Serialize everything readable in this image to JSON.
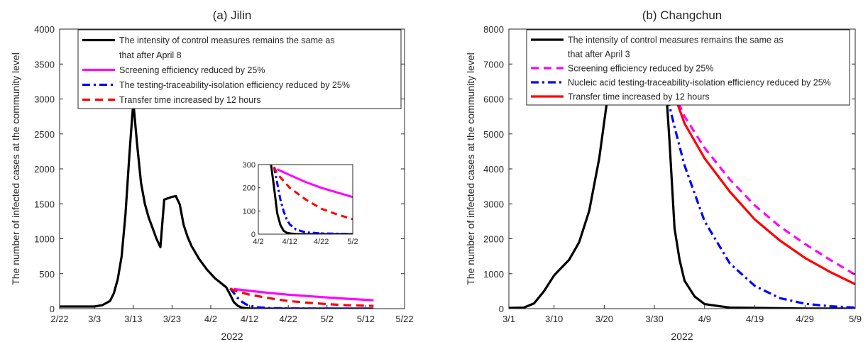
{
  "chart_data": [
    {
      "type": "line",
      "title": "(a) Jilin",
      "xlabel": "2022",
      "ylabel": "The number of infected cases at the community level",
      "xlim": [
        "2/22",
        "5/22"
      ],
      "ylim": [
        0,
        4000
      ],
      "xticks": [
        "2/22",
        "3/3",
        "3/13",
        "3/23",
        "4/2",
        "4/12",
        "4/22",
        "5/2",
        "5/12",
        "5/22"
      ],
      "yticks": [
        "0",
        "500",
        "1000",
        "1500",
        "2000",
        "2500",
        "3000",
        "3500",
        "4000"
      ],
      "legend_position": "top",
      "series": [
        {
          "name": "The intensity of control measures remains the same as that after April 8",
          "color": "#000000",
          "style": "solid",
          "x": [
            "2/22",
            "3/3",
            "3/5",
            "3/7",
            "3/8",
            "3/9",
            "3/10",
            "3/11",
            "3/12",
            "3/13",
            "3/14",
            "3/15",
            "3/16",
            "3/17",
            "3/18",
            "3/19",
            "3/20",
            "3/21",
            "3/22",
            "3/23",
            "3/24",
            "3/25",
            "3/26",
            "3/27",
            "3/28",
            "3/30",
            "4/1",
            "4/3",
            "4/5",
            "4/6",
            "4/7",
            "4/8",
            "4/9",
            "4/10",
            "4/11",
            "4/12",
            "4/14",
            "4/17",
            "4/22",
            "5/2",
            "5/14"
          ],
          "y": [
            30,
            30,
            50,
            110,
            220,
            420,
            750,
            1350,
            2200,
            2960,
            2350,
            1800,
            1500,
            1300,
            1150,
            1000,
            880,
            1560,
            1580,
            1600,
            1610,
            1490,
            1200,
            1030,
            900,
            710,
            560,
            440,
            350,
            305,
            200,
            90,
            40,
            15,
            6,
            3,
            1,
            0,
            0,
            0,
            0
          ]
        },
        {
          "name": "Screening efficiency reduced by 25%",
          "color": "#ff00ff",
          "style": "solid",
          "x": [
            "4/8",
            "4/12",
            "4/17",
            "4/22",
            "4/27",
            "5/2",
            "5/7",
            "5/14"
          ],
          "y": [
            280,
            255,
            225,
            200,
            180,
            160,
            142,
            120
          ]
        },
        {
          "name": "The testing-traceability-isolation efficiency reduced by 25%",
          "color": "#0000ff",
          "style": "dashdot",
          "x": [
            "4/7",
            "4/8",
            "4/9",
            "4/10",
            "4/11",
            "4/12",
            "4/14",
            "4/17",
            "4/22",
            "5/2",
            "5/14"
          ],
          "y": [
            290,
            220,
            150,
            100,
            65,
            42,
            20,
            8,
            3,
            1,
            0
          ]
        },
        {
          "name": "Transfer time increased by 12 hours",
          "color": "#ff0000",
          "style": "dashed",
          "x": [
            "4/7",
            "4/8",
            "4/10",
            "4/12",
            "4/17",
            "4/22",
            "4/27",
            "5/2",
            "5/7",
            "5/14"
          ],
          "y": [
            290,
            260,
            230,
            200,
            150,
            110,
            85,
            65,
            50,
            40
          ]
        }
      ],
      "inset": {
        "xlim": [
          "4/2",
          "5/2"
        ],
        "ylim": [
          0,
          300
        ],
        "xticks": [
          "4/2",
          "4/12",
          "4/22",
          "5/2"
        ],
        "yticks": [
          "0",
          "100",
          "200",
          "300"
        ]
      }
    },
    {
      "type": "line",
      "title": "(b) Changchun",
      "xlabel": "2022",
      "ylabel": "The number of infected cases at the community level",
      "xlim": [
        "3/1",
        "5/9"
      ],
      "ylim": [
        0,
        8000
      ],
      "xticks": [
        "3/1",
        "3/10",
        "3/20",
        "3/30",
        "4/9",
        "4/19",
        "4/29",
        "5/9"
      ],
      "yticks": [
        "0",
        "1000",
        "2000",
        "3000",
        "4000",
        "5000",
        "6000",
        "7000",
        "8000"
      ],
      "legend_position": "top",
      "series": [
        {
          "name": "The intensity of control measures remains the same as that after April 3",
          "color": "#000000",
          "style": "solid",
          "x": [
            "3/1",
            "3/4",
            "3/6",
            "3/8",
            "3/10",
            "3/11",
            "3/13",
            "3/15",
            "3/17",
            "3/19",
            "3/21",
            "3/22",
            "3/23",
            "3/25",
            "3/27",
            "3/29",
            "3/31",
            "4/1",
            "4/2",
            "4/3",
            "4/4",
            "4/5",
            "4/7",
            "4/9",
            "4/14",
            "4/29",
            "5/9"
          ],
          "y": [
            20,
            30,
            150,
            500,
            950,
            1100,
            1400,
            1900,
            2800,
            4300,
            6400,
            7900,
            8000,
            8000,
            8000,
            8000,
            8000,
            7000,
            4800,
            2300,
            1400,
            800,
            350,
            130,
            30,
            5,
            0
          ]
        },
        {
          "name": "Screening efficiency reduced by 25%",
          "color": "#ff00ff",
          "style": "dashed",
          "x": [
            "4/1",
            "4/3",
            "4/5",
            "4/9",
            "4/14",
            "4/19",
            "4/24",
            "4/29",
            "5/4",
            "5/9"
          ],
          "y": [
            6500,
            6150,
            5500,
            4600,
            3700,
            2950,
            2350,
            1850,
            1400,
            970
          ]
        },
        {
          "name": "Nucleic acid testing-traceability-isolation efficiency reduced by 25%",
          "color": "#0000ff",
          "style": "dashdot",
          "x": [
            "4/1",
            "4/2",
            "4/3",
            "4/5",
            "4/9",
            "4/14",
            "4/19",
            "4/24",
            "4/29",
            "5/4",
            "5/9"
          ],
          "y": [
            6500,
            5800,
            5200,
            4100,
            2500,
            1300,
            650,
            300,
            140,
            70,
            30
          ]
        },
        {
          "name": "Transfer time increased by 12 hours",
          "color": "#ff0000",
          "style": "solid",
          "x": [
            "4/1",
            "4/3",
            "4/5",
            "4/9",
            "4/14",
            "4/19",
            "4/24",
            "4/29",
            "5/4",
            "5/9"
          ],
          "y": [
            6500,
            6100,
            5300,
            4300,
            3350,
            2550,
            1950,
            1450,
            1050,
            700
          ]
        }
      ]
    }
  ]
}
